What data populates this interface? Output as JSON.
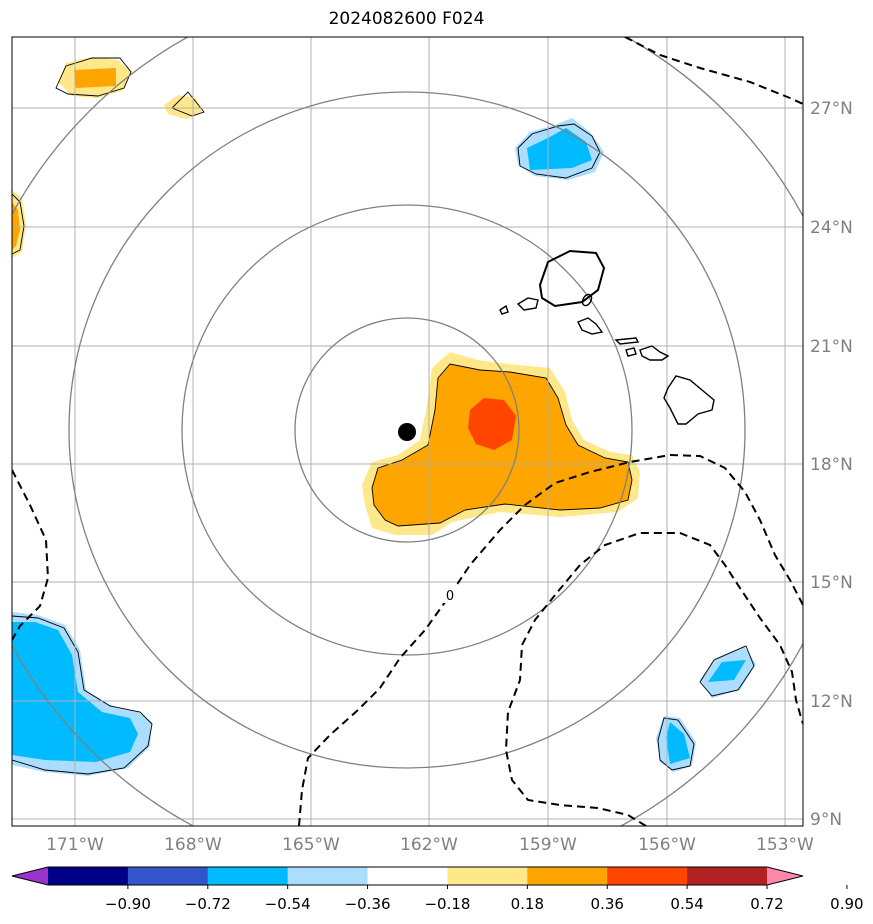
{
  "title": "2024082600 F024",
  "lon_labels": [
    "171°W",
    "168°W",
    "165°W",
    "162°W",
    "159°W",
    "156°W",
    "153°W"
  ],
  "lat_labels": [
    "27°N",
    "24°N",
    "21°N",
    "18°N",
    "15°N",
    "12°N",
    "9°N"
  ],
  "contour_label": "0",
  "colorbar": {
    "tick_labels": [
      "−0.90",
      "−0.72",
      "−0.54",
      "−0.36",
      "−0.18",
      "0.18",
      "0.36",
      "0.54",
      "0.72",
      "0.90"
    ],
    "colors": [
      "#9933cc",
      "#000088",
      "#3355cc",
      "#00bbff",
      "#aaddff",
      "#ffffff",
      "#ffe88a",
      "#ffa500",
      "#ff4500",
      "#b22222",
      "#ff88aa"
    ]
  },
  "fill_colors": {
    "light_yellow": "#ffe88a",
    "orange": "#ffa500",
    "red_orange": "#ff4500",
    "light_blue": "#aaddff",
    "deep_sky_blue": "#00bbff"
  },
  "range_ring_color": "#808080",
  "grid_color": "#b0b0b0",
  "tick_label_color": "#808080"
}
